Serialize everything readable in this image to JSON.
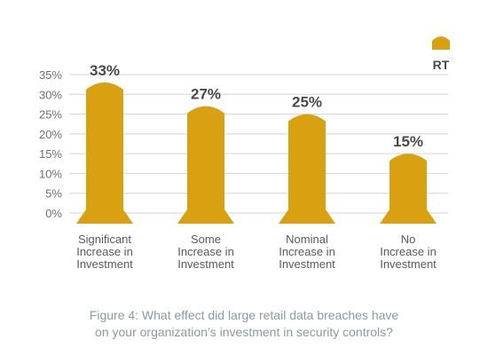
{
  "chart_data": {
    "type": "bar",
    "categories": [
      [
        "Significant",
        "Increase in",
        "Investment"
      ],
      [
        "Some",
        "Increase in",
        "Investment"
      ],
      [
        "Nominal",
        "Increase in",
        "Investment"
      ],
      [
        "No",
        "Increase in",
        "Investment"
      ]
    ],
    "series": [
      {
        "name": "RT",
        "values": [
          33,
          27,
          25,
          15
        ],
        "color": "#d9a011"
      }
    ],
    "data_labels": [
      "33%",
      "27%",
      "25%",
      "15%"
    ],
    "yticks": [
      "0%",
      "5%",
      "10%",
      "15%",
      "20%",
      "25%",
      "30%",
      "35%"
    ],
    "ylim": [
      0,
      35
    ],
    "grid": true,
    "legend_position": "top-right",
    "title": "",
    "xlabel": "",
    "ylabel": ""
  },
  "caption": {
    "line1": "Figure 4: What effect did large retail data breaches have",
    "line2": "on your organization’s investment in security controls?"
  }
}
